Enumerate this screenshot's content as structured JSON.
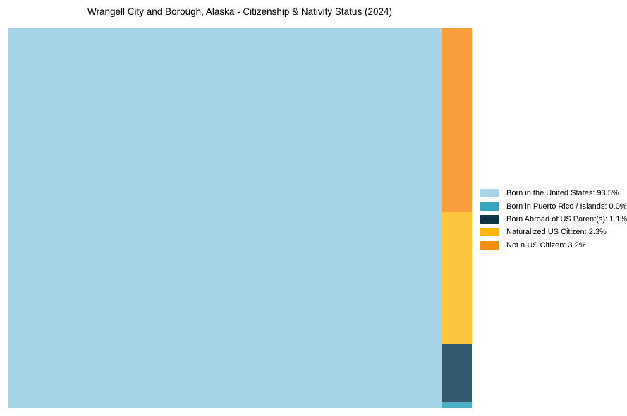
{
  "chart_data": {
    "type": "treemap",
    "title": "Wrangell City and Borough, Alaska - Citizenship & Nativity Status (2024)",
    "unit": "percent of population",
    "legend_position": "right-center",
    "layout_note": "Largest category fills a single large block on the left; remaining categories are stacked in a narrow column on the right, ordered top-to-bottom: Not a US Citizen, Naturalized US Citizen, Born Abroad of US Parent(s), Born in Puerto Rico / Islands (rendered as a thin sliver).",
    "series": [
      {
        "label": "Born in the United States",
        "value_pct": 93.5,
        "legend_label": "Born in the United States: 93.5%",
        "color": "#A9D5EA",
        "fill": "#A5D3E8"
      },
      {
        "label": "Born in Puerto Rico / Islands",
        "value_pct": 0.0,
        "legend_label": "Born in Puerto Rico / Islands: 0.0%",
        "color": "#38A3BE",
        "fill": "#4FADC4"
      },
      {
        "label": "Born Abroad of US Parent(s)",
        "value_pct": 1.1,
        "legend_label": "Born Abroad of US Parent(s): 1.1%",
        "color": "#0D3449",
        "fill": "#35596E"
      },
      {
        "label": "Naturalized US Citizen",
        "value_pct": 2.3,
        "legend_label": "Naturalized US Citizen: 2.3%",
        "color": "#FDB70D",
        "fill": "#FDC63E"
      },
      {
        "label": "Not a US Citizen",
        "value_pct": 3.2,
        "legend_label": "Not a US Citizen: 3.2%",
        "color": "#F68D13",
        "fill": "#FA9D3C"
      }
    ],
    "column_order_top_to_bottom": [
      "Not a US Citizen",
      "Naturalized US Citizen",
      "Born Abroad of US Parent(s)",
      "Born in Puerto Rico / Islands"
    ]
  },
  "colors": {
    "background": "#FFFFFF",
    "text": "#000000"
  }
}
